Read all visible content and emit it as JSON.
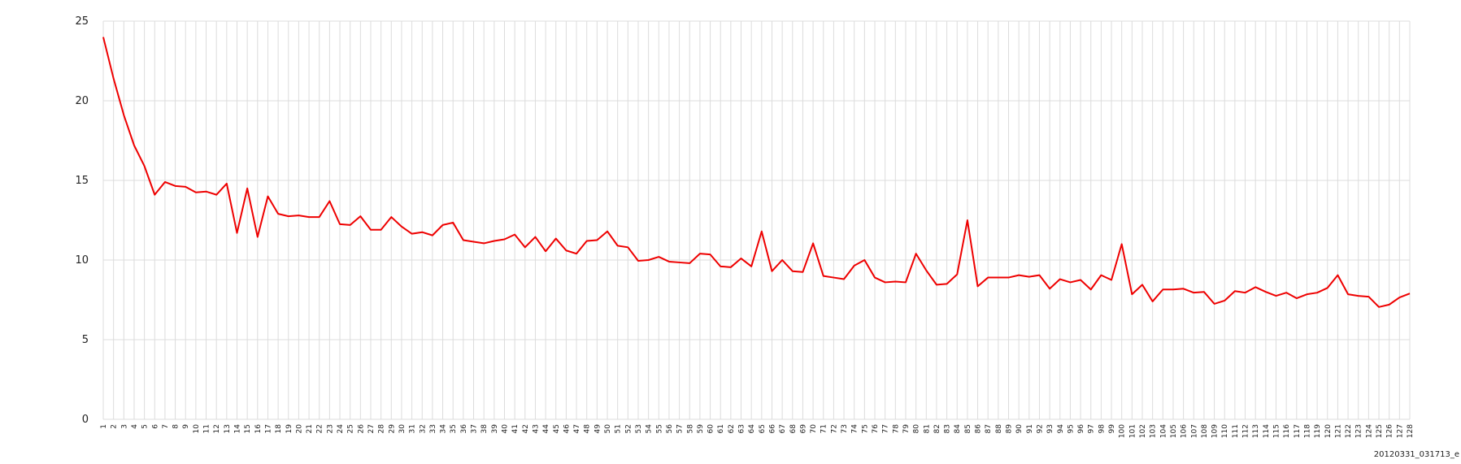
{
  "chart_data": {
    "type": "line",
    "categories": [
      1,
      2,
      3,
      4,
      5,
      6,
      7,
      8,
      9,
      10,
      11,
      12,
      13,
      14,
      15,
      16,
      17,
      18,
      19,
      20,
      21,
      22,
      23,
      24,
      25,
      26,
      27,
      28,
      29,
      30,
      31,
      32,
      33,
      34,
      35,
      36,
      37,
      38,
      39,
      40,
      41,
      42,
      43,
      44,
      45,
      46,
      47,
      48,
      49,
      50,
      51,
      52,
      53,
      54,
      55,
      56,
      57,
      58,
      59,
      60,
      61,
      62,
      63,
      64,
      65,
      66,
      67,
      68,
      69,
      70,
      71,
      72,
      73,
      74,
      75,
      76,
      77,
      78,
      79,
      80,
      81,
      82,
      83,
      84,
      85,
      86,
      87,
      88,
      89,
      90,
      91,
      92,
      93,
      94,
      95,
      96,
      97,
      98,
      99,
      100,
      101,
      102,
      103,
      104,
      105,
      106,
      107,
      108,
      109,
      110,
      111,
      112,
      113,
      114,
      115,
      116,
      117,
      118,
      119,
      120,
      121,
      122,
      123,
      124,
      125,
      126,
      127,
      128
    ],
    "values": [
      24.0,
      21.4,
      19.1,
      17.2,
      15.9,
      14.1,
      14.9,
      14.65,
      14.6,
      14.25,
      14.3,
      14.1,
      14.8,
      11.7,
      14.5,
      11.45,
      14.0,
      12.9,
      12.75,
      12.8,
      12.7,
      12.7,
      13.7,
      12.25,
      12.2,
      12.75,
      11.9,
      11.9,
      12.7,
      12.1,
      11.65,
      11.75,
      11.55,
      12.2,
      12.35,
      11.25,
      11.15,
      11.05,
      11.2,
      11.3,
      11.6,
      10.8,
      11.45,
      10.55,
      11.35,
      10.6,
      10.4,
      11.2,
      11.25,
      11.8,
      10.9,
      10.8,
      9.95,
      10.0,
      10.2,
      9.9,
      9.85,
      9.8,
      10.4,
      10.35,
      9.6,
      9.55,
      10.1,
      9.6,
      11.8,
      9.3,
      10.0,
      9.3,
      9.25,
      11.05,
      9.0,
      8.9,
      8.8,
      9.65,
      10.0,
      8.9,
      8.6,
      8.65,
      8.6,
      10.4,
      9.35,
      8.45,
      8.5,
      9.1,
      12.5,
      8.35,
      8.9,
      8.9,
      8.9,
      9.05,
      8.95,
      9.05,
      8.2,
      8.8,
      8.6,
      8.75,
      8.15,
      9.05,
      8.75,
      11.0,
      7.85,
      8.45,
      7.4,
      8.15,
      8.15,
      8.2,
      7.95,
      8.0,
      7.25,
      7.45,
      8.05,
      7.95,
      8.3,
      8.0,
      7.75,
      7.95,
      7.6,
      7.85,
      7.95,
      8.25,
      9.05,
      7.85,
      7.75,
      7.7,
      7.05,
      7.2,
      7.65,
      7.9
    ],
    "color": "#ee0000",
    "ylim": [
      0,
      25
    ],
    "yticks": [
      0,
      5,
      10,
      15,
      20,
      25
    ],
    "grid": true,
    "footer": "20120331_031713_e"
  }
}
